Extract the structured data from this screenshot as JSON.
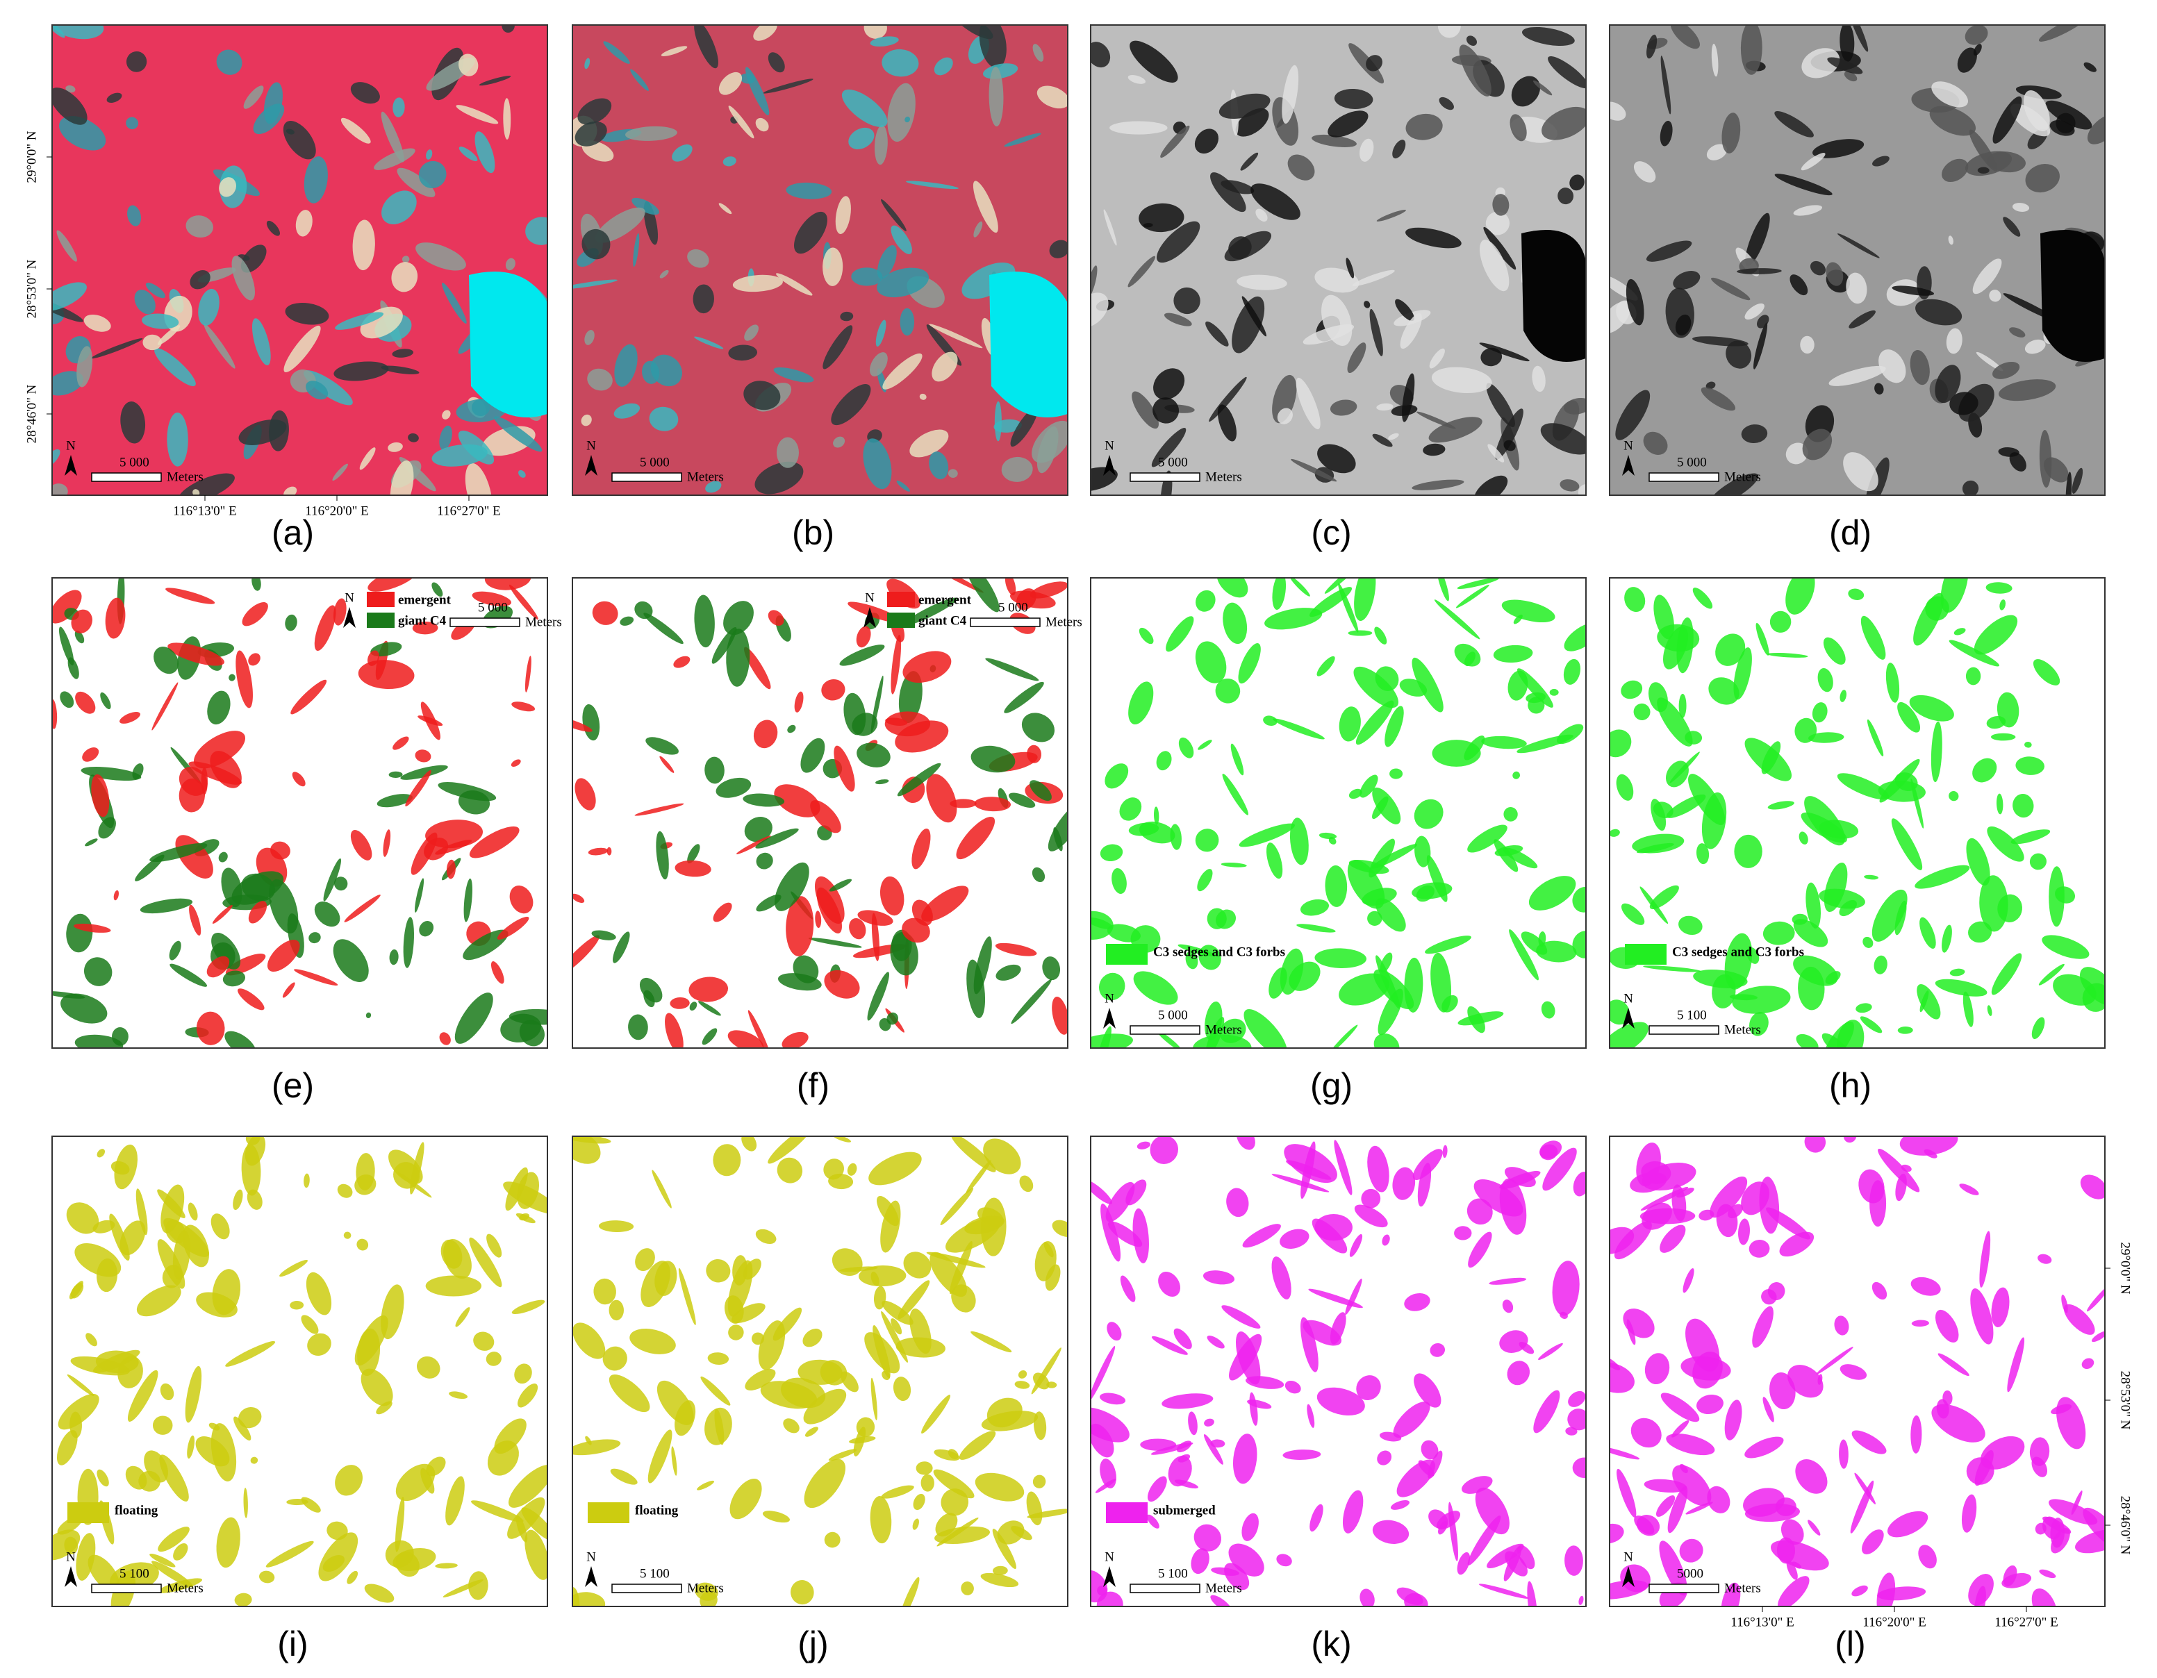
{
  "panels": [
    {
      "label": "(a)",
      "imagery": "false-color",
      "scale": "5 000",
      "unit": "Meters",
      "north": "N",
      "legend": [],
      "lat": [
        "29°0'0\" N",
        "28°53'0\" N",
        "28°46'0\" N"
      ],
      "lon": [
        "116°13'0\" E",
        "116°20'0\" E",
        "116°27'0\" E"
      ],
      "coord_side": "left"
    },
    {
      "label": "(b)",
      "imagery": "false-color",
      "scale": "5 000",
      "unit": "Meters",
      "north": "N",
      "legend": []
    },
    {
      "label": "(c)",
      "imagery": "grayscale",
      "scale": "5 000",
      "unit": "Meters",
      "north": "N",
      "legend": []
    },
    {
      "label": "(d)",
      "imagery": "grayscale",
      "scale": "5 000",
      "unit": "Meters",
      "north": "N",
      "legend": []
    },
    {
      "label": "(e)",
      "imagery": "classes",
      "scale": "5 000",
      "unit": "Meters",
      "north": "N",
      "legend_position": "upper-right",
      "legend": [
        {
          "name": "emergent",
          "color": "#ee1c1c"
        },
        {
          "name": "giant C4",
          "color": "#1a7a1a"
        }
      ]
    },
    {
      "label": "(f)",
      "imagery": "classes",
      "scale": "5 000",
      "unit": "Meters",
      "north": "N",
      "legend_position": "upper-right",
      "legend": [
        {
          "name": "emergent",
          "color": "#ee1c1c"
        },
        {
          "name": "giant C4",
          "color": "#1a7a1a"
        }
      ]
    },
    {
      "label": "(g)",
      "imagery": "classes",
      "scale": "5 000",
      "unit": "Meters",
      "north": "N",
      "legend_position": "lower-left",
      "legend": [
        {
          "name": "C3 sedges and C3 forbs",
          "color": "#22ee22"
        }
      ]
    },
    {
      "label": "(h)",
      "imagery": "classes",
      "scale": "5 100",
      "unit": "Meters",
      "north": "N",
      "legend_position": "lower-left",
      "legend": [
        {
          "name": "C3 sedges and C3 forbs",
          "color": "#22ee22"
        }
      ]
    },
    {
      "label": "(i)",
      "imagery": "classes",
      "scale": "5 100",
      "unit": "Meters",
      "north": "N",
      "legend_position": "lower-left",
      "legend": [
        {
          "name": "floating",
          "color": "#cccc10"
        }
      ]
    },
    {
      "label": "(j)",
      "imagery": "classes",
      "scale": "5 100",
      "unit": "Meters",
      "north": "N",
      "legend_position": "lower-left",
      "legend": [
        {
          "name": "floating",
          "color": "#cccc10"
        }
      ]
    },
    {
      "label": "(k)",
      "imagery": "classes",
      "scale": "5 100",
      "unit": "Meters",
      "north": "N",
      "legend_position": "lower-left",
      "legend": [
        {
          "name": "submerged",
          "color": "#ee22ee"
        }
      ]
    },
    {
      "label": "(l)",
      "imagery": "classes",
      "scale": "5000",
      "unit": "Meters",
      "north": "N",
      "legend": [
        {
          "color": "#ee22ee"
        }
      ],
      "lat": [
        "29°0'0\" N",
        "28°53'0\" N",
        "28°46'0\" N"
      ],
      "lon": [
        "116°13'0\" E",
        "116°20'0\" E",
        "116°27'0\" E"
      ],
      "coord_side": "right"
    }
  ]
}
